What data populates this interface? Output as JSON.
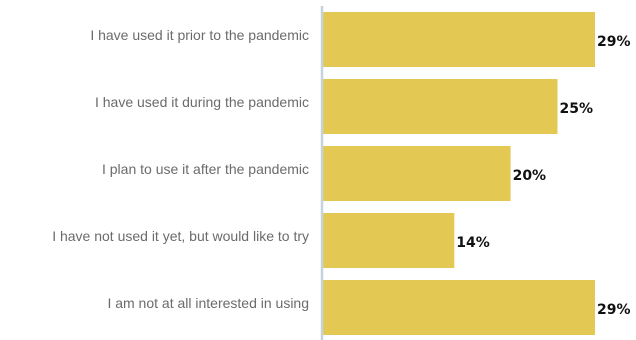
{
  "chart_data": {
    "type": "bar",
    "orientation": "horizontal",
    "categories": [
      "I have used it prior to the pandemic",
      "I have used it during the pandemic",
      "I plan to use it after the pandemic",
      "I have not used it yet, but would like to try",
      "I am not at all interested in using"
    ],
    "values": [
      29,
      25,
      20,
      14,
      29
    ],
    "value_labels": [
      "29%",
      "25%",
      "20%",
      "14%",
      "29%"
    ],
    "title": "",
    "xlabel": "",
    "ylabel": "",
    "xlim": [
      0,
      29
    ],
    "grid": false,
    "legend": "none",
    "colors": {
      "bar": "#e3c853",
      "axis": "#c5d3df",
      "category_text": "#6b6b6b",
      "value_text": "#111111"
    }
  }
}
